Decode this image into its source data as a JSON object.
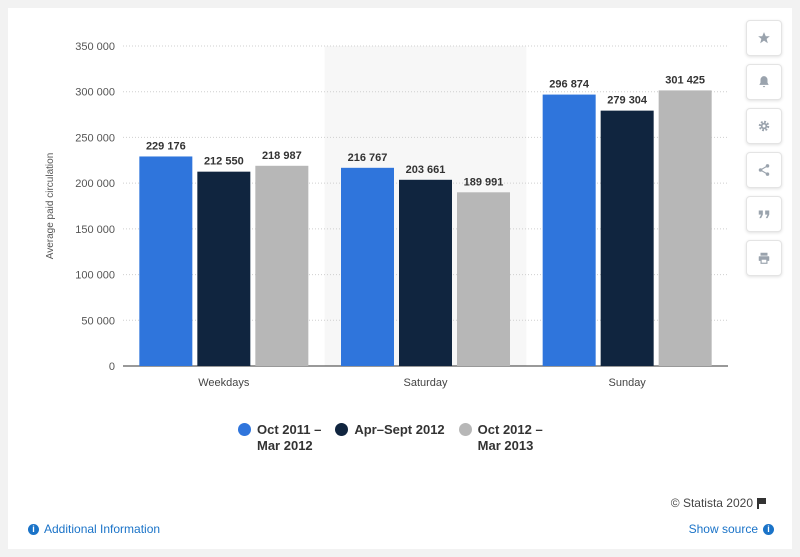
{
  "chart_data": {
    "type": "bar",
    "categories": [
      "Weekdays",
      "Saturday",
      "Sunday"
    ],
    "series": [
      {
        "name": "Oct 2011 – Mar 2012",
        "color": "#2f75dc",
        "values": [
          229176,
          216767,
          296874
        ]
      },
      {
        "name": "Apr–Sept 2012",
        "color": "#10253f",
        "values": [
          212550,
          203661,
          279304
        ]
      },
      {
        "name": "Oct 2012 – Mar 2013",
        "color": "#b7b7b7",
        "values": [
          218987,
          189991,
          301425
        ]
      }
    ],
    "value_labels": [
      [
        "229 176",
        "216 767",
        "296 874"
      ],
      [
        "212 550",
        "203 661",
        "279 304"
      ],
      [
        "218 987",
        "189 991",
        "301 425"
      ]
    ],
    "title": "",
    "xlabel": "",
    "ylabel": "Average paid circulation",
    "ylim": [
      0,
      350000
    ],
    "yticks": [
      0,
      50000,
      100000,
      150000,
      200000,
      250000,
      300000,
      350000
    ],
    "ytick_labels": [
      "0",
      "50 000",
      "100 000",
      "150 000",
      "200 000",
      "250 000",
      "300 000",
      "350 000"
    ],
    "grid": true,
    "legend_position": "bottom"
  },
  "legend": {
    "items": [
      {
        "line1": "Oct 2011 –",
        "line2": "Mar 2012",
        "color": "#2f75dc"
      },
      {
        "line1": "Apr–Sept 2012",
        "line2": "",
        "color": "#10253f"
      },
      {
        "line1": "Oct 2012 –",
        "line2": "Mar 2013",
        "color": "#b7b7b7"
      }
    ]
  },
  "toolbar": {
    "icons": [
      "star-icon",
      "bell-icon",
      "gear-icon",
      "share-icon",
      "quote-icon",
      "print-icon"
    ]
  },
  "footer": {
    "credit": "© Statista 2020",
    "additional_info": "Additional Information",
    "show_source": "Show source"
  }
}
